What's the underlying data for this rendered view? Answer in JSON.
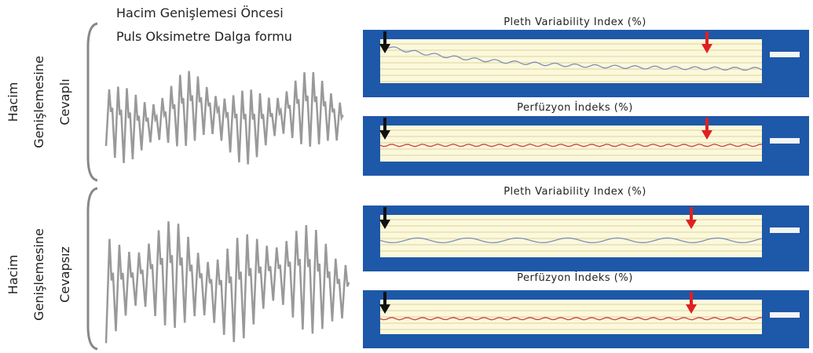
{
  "header": {
    "line1": "Hacim Genişlemesi Öncesi",
    "line2": "Puls Oksimetre Dalga formu"
  },
  "groups": [
    {
      "label": [
        "Hacim",
        "Genişlemesine",
        "Cevaplı"
      ],
      "panels": [
        {
          "title": "Pleth Variability Index (%)"
        },
        {
          "title": "Perfüzyon İndeks (%)"
        }
      ]
    },
    {
      "label": [
        "Hacim",
        "Genişlemesine",
        "Cevapsız"
      ],
      "panels": [
        {
          "title": "Pleth Variability Index (%)"
        },
        {
          "title": "Perfüzyon İndeks (%)"
        }
      ]
    }
  ]
}
